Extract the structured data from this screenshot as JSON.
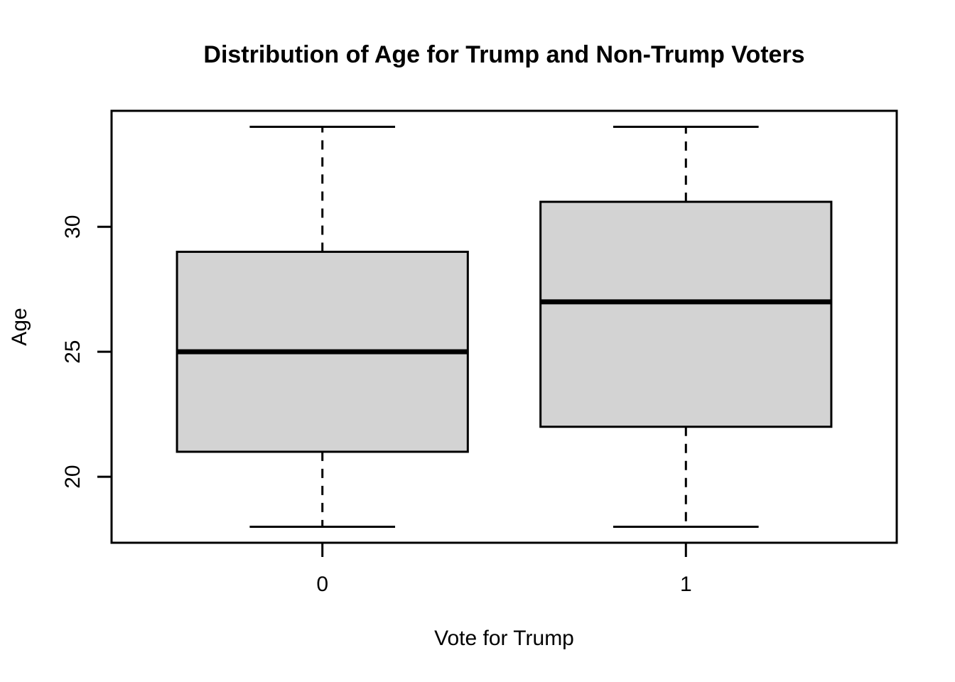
{
  "title": "Distribution of Age for Trump and Non-Trump Voters",
  "chart_data": {
    "type": "boxplot",
    "title": "Distribution of Age for Trump and Non-Trump Voters",
    "xlabel": "Vote for Trump",
    "ylabel": "Age",
    "categories": [
      "0",
      "1"
    ],
    "x_positions": [
      1,
      2
    ],
    "series": [
      {
        "name": "0",
        "whisker_low": 18,
        "q1": 21,
        "median": 25,
        "q3": 29,
        "whisker_high": 34
      },
      {
        "name": "1",
        "whisker_low": 18,
        "q1": 22,
        "median": 27,
        "q3": 31,
        "whisker_high": 34
      }
    ],
    "y_ticks": [
      20,
      25,
      30
    ],
    "y_tick_labels": [
      "20",
      "25",
      "30"
    ],
    "xlim": [
      0.42,
      2.58
    ],
    "ylim": [
      17.36,
      34.64
    ],
    "box_width": 0.8,
    "cap_width": 0.4,
    "grid": false,
    "legend": null,
    "colors": {
      "box_fill": "#D3D3D3",
      "line": "#000000",
      "background": "#FFFFFF"
    }
  }
}
